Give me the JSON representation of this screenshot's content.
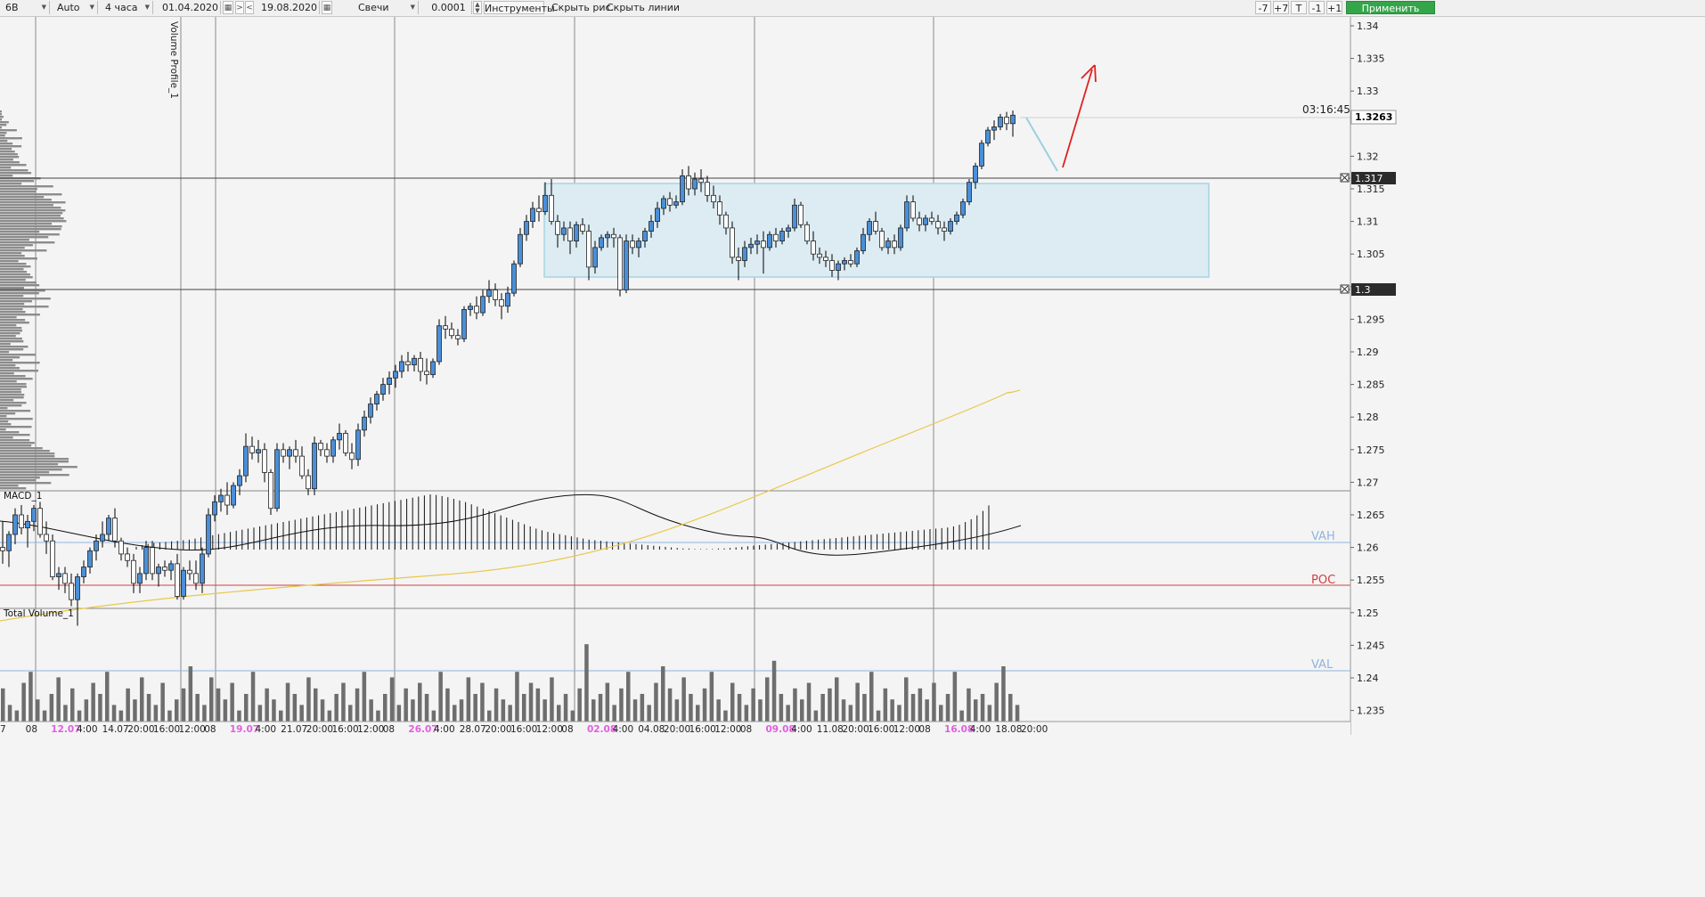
{
  "toolbar": {
    "symbol": "6B",
    "scale_mode": "Auto",
    "timeframe": "4 часа",
    "date_from": "01.04.2020",
    "nav_prev": ">",
    "nav_next": "<",
    "date_to": "19.08.2020",
    "chart_type": "Свечи",
    "tick_size": "0.0001",
    "tools_label": "Инструменты",
    "hide_drawings": "Скрыть рис.",
    "hide_lines": "Скрыть линии",
    "btn_minus7": "-7",
    "btn_plus7": "+7",
    "btn_t": "T",
    "btn_minus1": "-1",
    "btn_plus1": "+1",
    "apply": "Применить"
  },
  "price_axis": {
    "ticks": [
      "1.34",
      "1.335",
      "1.33",
      "1.3263",
      "1.32",
      "1.315",
      "1.31",
      "1.305",
      "1.3",
      "1.295",
      "1.29",
      "1.285",
      "1.28",
      "1.275",
      "1.27",
      "1.265",
      "1.26",
      "1.255",
      "1.25",
      "1.245",
      "1.24",
      "1.235"
    ],
    "current_price": "1.3263",
    "countdown": "03:16:45",
    "level_high": "1.317",
    "level_low": "1.3"
  },
  "time_axis": {
    "labels": [
      "7",
      "08",
      "12.07",
      "4:00",
      "14.07",
      "20:00",
      "16:00",
      "12:00",
      "08",
      "19.07",
      "4:00",
      "21.07",
      "20:00",
      "16:00",
      "12:00",
      "08",
      "26.07",
      "4:00",
      "28.07",
      "20:00",
      "16:00",
      "12:00",
      "08",
      "02.08",
      "4:00",
      "04.08",
      "20:00",
      "16:00",
      "12:00",
      "08",
      "09.08",
      "4:00",
      "11.08",
      "20:00",
      "16:00",
      "12:00",
      "08",
      "16.08",
      "4:00",
      "18.08",
      "20:00"
    ],
    "highlight_dates": [
      "12.07",
      "19.07",
      "26.07",
      "02.08",
      "09.08",
      "16.08"
    ]
  },
  "indicators": {
    "volume_profile": "Volume Profile_1",
    "macd": "MACD_1",
    "total_volume": "Total Volume_1",
    "vah": "VAH",
    "poc": "POC",
    "val": "VAL"
  },
  "colors": {
    "up": "#4a8fd8",
    "down": "#ffffff",
    "wick": "#000000",
    "ma": "#e8c84a",
    "poc": "#d04040",
    "vah_val": "#8fb3e0",
    "box": "#dcecf2",
    "box_border": "#a7d3e3",
    "arrow_red": "#e02020",
    "projection": "#9ccfe0",
    "highlight_date": "#e060e0",
    "apply": "#35a54a"
  },
  "chart_data": {
    "type": "candlestick",
    "ylim": [
      1.233,
      1.342
    ],
    "candles": [
      [
        1.26,
        1.264,
        1.2575,
        1.2595
      ],
      [
        1.2595,
        1.2625,
        1.257,
        1.262
      ],
      [
        1.262,
        1.266,
        1.2605,
        1.265
      ],
      [
        1.265,
        1.2665,
        1.262,
        1.263
      ],
      [
        1.263,
        1.265,
        1.26,
        1.264
      ],
      [
        1.264,
        1.2665,
        1.2625,
        1.266
      ],
      [
        1.266,
        1.267,
        1.2615,
        1.262
      ],
      [
        1.262,
        1.264,
        1.259,
        1.261
      ],
      [
        1.261,
        1.262,
        1.255,
        1.2555
      ],
      [
        1.2555,
        1.257,
        1.2535,
        1.256
      ],
      [
        1.256,
        1.257,
        1.253,
        1.2545
      ],
      [
        1.2545,
        1.256,
        1.251,
        1.252
      ],
      [
        1.252,
        1.256,
        1.248,
        1.2555
      ],
      [
        1.2555,
        1.258,
        1.2545,
        1.257
      ],
      [
        1.257,
        1.26,
        1.256,
        1.2595
      ],
      [
        1.2595,
        1.262,
        1.258,
        1.261
      ],
      [
        1.261,
        1.264,
        1.26,
        1.262
      ],
      [
        1.262,
        1.265,
        1.261,
        1.2645
      ],
      [
        1.2645,
        1.266,
        1.26,
        1.261
      ],
      [
        1.261,
        1.2615,
        1.258,
        1.259
      ],
      [
        1.259,
        1.26,
        1.257,
        1.258
      ],
      [
        1.258,
        1.259,
        1.253,
        1.2545
      ],
      [
        1.2545,
        1.257,
        1.253,
        1.256
      ],
      [
        1.256,
        1.261,
        1.255,
        1.26
      ],
      [
        1.26,
        1.261,
        1.255,
        1.256
      ],
      [
        1.256,
        1.2575,
        1.254,
        1.257
      ],
      [
        1.257,
        1.258,
        1.2555,
        1.2565
      ],
      [
        1.2565,
        1.258,
        1.255,
        1.2575
      ],
      [
        1.2575,
        1.259,
        1.252,
        1.2525
      ],
      [
        1.2525,
        1.257,
        1.252,
        1.2565
      ],
      [
        1.2565,
        1.258,
        1.255,
        1.256
      ],
      [
        1.256,
        1.258,
        1.2535,
        1.2545
      ],
      [
        1.2545,
        1.26,
        1.253,
        1.259
      ],
      [
        1.259,
        1.266,
        1.2585,
        1.265
      ],
      [
        1.265,
        1.268,
        1.264,
        1.267
      ],
      [
        1.267,
        1.269,
        1.2655,
        1.268
      ],
      [
        1.268,
        1.27,
        1.265,
        1.2665
      ],
      [
        1.2665,
        1.27,
        1.266,
        1.2695
      ],
      [
        1.2695,
        1.272,
        1.268,
        1.271
      ],
      [
        1.271,
        1.2775,
        1.27,
        1.2755
      ],
      [
        1.2755,
        1.277,
        1.2735,
        1.2745
      ],
      [
        1.2745,
        1.2765,
        1.273,
        1.275
      ],
      [
        1.275,
        1.276,
        1.27,
        1.2715
      ],
      [
        1.2715,
        1.272,
        1.265,
        1.266
      ],
      [
        1.266,
        1.276,
        1.2655,
        1.275
      ],
      [
        1.275,
        1.276,
        1.273,
        1.274
      ],
      [
        1.274,
        1.2755,
        1.272,
        1.275
      ],
      [
        1.275,
        1.2765,
        1.273,
        1.274
      ],
      [
        1.274,
        1.2755,
        1.2705,
        1.271
      ],
      [
        1.271,
        1.272,
        1.268,
        1.269
      ],
      [
        1.269,
        1.277,
        1.268,
        1.276
      ],
      [
        1.276,
        1.2765,
        1.274,
        1.275
      ],
      [
        1.275,
        1.276,
        1.273,
        1.274
      ],
      [
        1.274,
        1.277,
        1.273,
        1.2765
      ],
      [
        1.2765,
        1.279,
        1.275,
        1.2775
      ],
      [
        1.2775,
        1.278,
        1.274,
        1.2745
      ],
      [
        1.2745,
        1.276,
        1.272,
        1.2735
      ],
      [
        1.2735,
        1.279,
        1.2725,
        1.278
      ],
      [
        1.278,
        1.281,
        1.277,
        1.28
      ],
      [
        1.28,
        1.283,
        1.279,
        1.282
      ],
      [
        1.282,
        1.284,
        1.281,
        1.2835
      ],
      [
        1.2835,
        1.286,
        1.2825,
        1.285
      ],
      [
        1.285,
        1.287,
        1.2835,
        1.286
      ],
      [
        1.286,
        1.288,
        1.2845,
        1.287
      ],
      [
        1.287,
        1.2895,
        1.286,
        1.2885
      ],
      [
        1.2885,
        1.29,
        1.287,
        1.288
      ],
      [
        1.288,
        1.2895,
        1.287,
        1.289
      ],
      [
        1.289,
        1.29,
        1.2855,
        1.287
      ],
      [
        1.287,
        1.289,
        1.285,
        1.2865
      ],
      [
        1.2865,
        1.289,
        1.286,
        1.2885
      ],
      [
        1.2885,
        1.295,
        1.288,
        1.294
      ],
      [
        1.294,
        1.2955,
        1.292,
        1.2935
      ],
      [
        1.2935,
        1.2945,
        1.292,
        1.2925
      ],
      [
        1.2925,
        1.2935,
        1.291,
        1.292
      ],
      [
        1.292,
        1.297,
        1.2915,
        1.2965
      ],
      [
        1.2965,
        1.2975,
        1.2955,
        1.297
      ],
      [
        1.297,
        1.2985,
        1.295,
        1.296
      ],
      [
        1.296,
        1.2995,
        1.2955,
        1.2985
      ],
      [
        1.2985,
        1.301,
        1.2975,
        1.2995
      ],
      [
        1.2995,
        1.3005,
        1.297,
        1.298
      ],
      [
        1.298,
        1.299,
        1.295,
        1.297
      ],
      [
        1.297,
        1.3,
        1.296,
        1.299
      ],
      [
        1.299,
        1.304,
        1.2985,
        1.3035
      ],
      [
        1.3035,
        1.309,
        1.303,
        1.308
      ],
      [
        1.308,
        1.311,
        1.307,
        1.31
      ],
      [
        1.31,
        1.313,
        1.309,
        1.312
      ],
      [
        1.312,
        1.314,
        1.31,
        1.3115
      ],
      [
        1.3115,
        1.316,
        1.311,
        1.314
      ],
      [
        1.314,
        1.3165,
        1.3095,
        1.31
      ],
      [
        1.31,
        1.311,
        1.306,
        1.308
      ],
      [
        1.308,
        1.31,
        1.307,
        1.309
      ],
      [
        1.309,
        1.31,
        1.305,
        1.307
      ],
      [
        1.307,
        1.31,
        1.306,
        1.3095
      ],
      [
        1.3095,
        1.3105,
        1.308,
        1.3085
      ],
      [
        1.3085,
        1.3095,
        1.301,
        1.303
      ],
      [
        1.303,
        1.307,
        1.302,
        1.306
      ],
      [
        1.306,
        1.308,
        1.3055,
        1.3075
      ],
      [
        1.3075,
        1.3085,
        1.306,
        1.308
      ],
      [
        1.308,
        1.309,
        1.306,
        1.3075
      ],
      [
        1.3075,
        1.308,
        1.2985,
        1.2995
      ],
      [
        1.2995,
        1.308,
        1.299,
        1.307
      ],
      [
        1.307,
        1.308,
        1.305,
        1.306
      ],
      [
        1.306,
        1.3075,
        1.3045,
        1.307
      ],
      [
        1.307,
        1.309,
        1.306,
        1.3085
      ],
      [
        1.3085,
        1.311,
        1.3075,
        1.31
      ],
      [
        1.31,
        1.313,
        1.309,
        1.312
      ],
      [
        1.312,
        1.314,
        1.311,
        1.3135
      ],
      [
        1.3135,
        1.3145,
        1.3115,
        1.3125
      ],
      [
        1.3125,
        1.314,
        1.312,
        1.313
      ],
      [
        1.313,
        1.318,
        1.3125,
        1.317
      ],
      [
        1.317,
        1.3185,
        1.314,
        1.315
      ],
      [
        1.315,
        1.3175,
        1.314,
        1.3165
      ],
      [
        1.3165,
        1.318,
        1.3145,
        1.316
      ],
      [
        1.316,
        1.317,
        1.313,
        1.314
      ],
      [
        1.314,
        1.3155,
        1.312,
        1.313
      ],
      [
        1.313,
        1.314,
        1.3095,
        1.311
      ],
      [
        1.311,
        1.3115,
        1.308,
        1.309
      ],
      [
        1.309,
        1.31,
        1.3035,
        1.3045
      ],
      [
        1.3045,
        1.306,
        1.301,
        1.304
      ],
      [
        1.304,
        1.307,
        1.303,
        1.306
      ],
      [
        1.306,
        1.3075,
        1.305,
        1.3065
      ],
      [
        1.3065,
        1.308,
        1.305,
        1.307
      ],
      [
        1.307,
        1.3085,
        1.302,
        1.306
      ],
      [
        1.306,
        1.3085,
        1.3055,
        1.308
      ],
      [
        1.308,
        1.309,
        1.306,
        1.307
      ],
      [
        1.307,
        1.309,
        1.3065,
        1.3085
      ],
      [
        1.3085,
        1.3095,
        1.3075,
        1.309
      ],
      [
        1.309,
        1.3135,
        1.3085,
        1.3125
      ],
      [
        1.3125,
        1.313,
        1.309,
        1.3095
      ],
      [
        1.3095,
        1.31,
        1.3065,
        1.307
      ],
      [
        1.307,
        1.3085,
        1.304,
        1.305
      ],
      [
        1.305,
        1.306,
        1.3035,
        1.3045
      ],
      [
        1.3045,
        1.3055,
        1.303,
        1.304
      ],
      [
        1.304,
        1.305,
        1.3015,
        1.3025
      ],
      [
        1.3025,
        1.304,
        1.301,
        1.3035
      ],
      [
        1.3035,
        1.3045,
        1.3025,
        1.304
      ],
      [
        1.304,
        1.305,
        1.303,
        1.3035
      ],
      [
        1.3035,
        1.306,
        1.303,
        1.3055
      ],
      [
        1.3055,
        1.309,
        1.305,
        1.308
      ],
      [
        1.308,
        1.3105,
        1.307,
        1.31
      ],
      [
        1.31,
        1.3115,
        1.308,
        1.3085
      ],
      [
        1.3085,
        1.309,
        1.3055,
        1.306
      ],
      [
        1.306,
        1.3075,
        1.305,
        1.307
      ],
      [
        1.307,
        1.308,
        1.305,
        1.306
      ],
      [
        1.306,
        1.3095,
        1.3055,
        1.309
      ],
      [
        1.309,
        1.314,
        1.3085,
        1.313
      ],
      [
        1.313,
        1.314,
        1.31,
        1.3105
      ],
      [
        1.3105,
        1.3115,
        1.3085,
        1.3095
      ],
      [
        1.3095,
        1.311,
        1.3085,
        1.3105
      ],
      [
        1.3105,
        1.3115,
        1.3095,
        1.31
      ],
      [
        1.31,
        1.311,
        1.308,
        1.309
      ],
      [
        1.309,
        1.31,
        1.307,
        1.3085
      ],
      [
        1.3085,
        1.3105,
        1.308,
        1.31
      ],
      [
        1.31,
        1.3115,
        1.3095,
        1.311
      ],
      [
        1.311,
        1.3135,
        1.3105,
        1.313
      ],
      [
        1.313,
        1.3165,
        1.3125,
        1.316
      ],
      [
        1.316,
        1.319,
        1.315,
        1.3185
      ],
      [
        1.3185,
        1.3225,
        1.318,
        1.322
      ],
      [
        1.322,
        1.3245,
        1.3215,
        1.324
      ],
      [
        1.324,
        1.3255,
        1.3225,
        1.3245
      ],
      [
        1.3245,
        1.3265,
        1.324,
        1.326
      ],
      [
        1.326,
        1.3268,
        1.324,
        1.325
      ],
      [
        1.325,
        1.327,
        1.323,
        1.3263
      ]
    ],
    "macd_bars": [
      0.05,
      0.08,
      0.1,
      0.12,
      0.13,
      0.14,
      0.15,
      0.16,
      0.17,
      0.18,
      0.2,
      0.22,
      0.24,
      0.26,
      0.28,
      0.3,
      0.32,
      0.34,
      0.36,
      0.38,
      0.4,
      0.42,
      0.44,
      0.46,
      0.48,
      0.5,
      0.52,
      0.54,
      0.56,
      0.58,
      0.6,
      0.62,
      0.64,
      0.66,
      0.68,
      0.7,
      0.72,
      0.74,
      0.76,
      0.78,
      0.8,
      0.82,
      0.84,
      0.86,
      0.88,
      0.9,
      0.92,
      0.94,
      0.96,
      0.98,
      1.0,
      0.99,
      0.97,
      0.95,
      0.92,
      0.89,
      0.86,
      0.82,
      0.78,
      0.74,
      0.7,
      0.66,
      0.62,
      0.58,
      0.54,
      0.5,
      0.46,
      0.42,
      0.38,
      0.35,
      0.32,
      0.3,
      0.28,
      0.26,
      0.24,
      0.22,
      0.2,
      0.18,
      0.17,
      0.16,
      0.15,
      0.14,
      0.13,
      0.12,
      0.11,
      0.1,
      0.09,
      0.08,
      0.07,
      0.06,
      0.05,
      0.04,
      0.03,
      0.02,
      0.02,
      0.01,
      0.01,
      0.01,
      0.01,
      0.02,
      0.02,
      0.03,
      0.04,
      0.05,
      0.06,
      0.07,
      0.08,
      0.09,
      0.1,
      0.11,
      0.12,
      0.13,
      0.14,
      0.15,
      0.16,
      0.17,
      0.18,
      0.19,
      0.2,
      0.21,
      0.22,
      0.23,
      0.24,
      0.25,
      0.26,
      0.27,
      0.28,
      0.29,
      0.3,
      0.31,
      0.32,
      0.33,
      0.34,
      0.35,
      0.36,
      0.37,
      0.38,
      0.39,
      0.4,
      0.42,
      0.45,
      0.5,
      0.55,
      0.62,
      0.7,
      0.8
    ],
    "volumes": [
      0.6,
      0.3,
      0.2,
      0.7,
      0.9,
      0.4,
      0.2,
      0.5,
      0.8,
      0.3,
      0.6,
      0.2,
      0.4,
      0.7,
      0.5,
      0.9,
      0.3,
      0.2,
      0.6,
      0.4,
      0.8,
      0.5,
      0.3,
      0.7,
      0.2,
      0.4,
      0.6,
      1.0,
      0.5,
      0.3,
      0.8,
      0.6,
      0.4,
      0.7,
      0.2,
      0.5,
      0.9,
      0.3,
      0.6,
      0.4,
      0.2,
      0.7,
      0.5,
      0.3,
      0.8,
      0.6,
      0.4,
      0.2,
      0.5,
      0.7,
      0.3,
      0.6,
      0.9,
      0.4,
      0.2,
      0.5,
      0.8,
      0.3,
      0.6,
      0.4,
      0.7,
      0.5,
      0.2,
      0.9,
      0.6,
      0.3,
      0.4,
      0.8,
      0.5,
      0.7,
      0.2,
      0.6,
      0.4,
      0.3,
      0.9,
      0.5,
      0.7,
      0.6,
      0.4,
      0.8,
      0.3,
      0.5,
      0.2,
      0.6,
      1.4,
      0.4,
      0.5,
      0.7,
      0.3,
      0.6,
      0.9,
      0.4,
      0.5,
      0.3,
      0.7,
      1.0,
      0.6,
      0.4,
      0.8,
      0.5,
      0.3,
      0.6,
      0.9,
      0.4,
      0.2,
      0.7,
      0.5,
      0.3,
      0.6,
      0.4,
      0.8,
      1.1,
      0.5,
      0.3,
      0.6,
      0.4,
      0.7,
      0.2,
      0.5,
      0.6,
      0.8,
      0.4,
      0.3,
      0.7,
      0.5,
      0.9,
      0.2,
      0.6,
      0.4,
      0.3,
      0.8,
      0.5,
      0.6,
      0.4,
      0.7,
      0.3,
      0.5,
      0.9,
      0.2,
      0.6,
      0.4,
      0.5,
      0.3,
      0.7,
      1.0,
      0.5,
      0.3
    ]
  }
}
